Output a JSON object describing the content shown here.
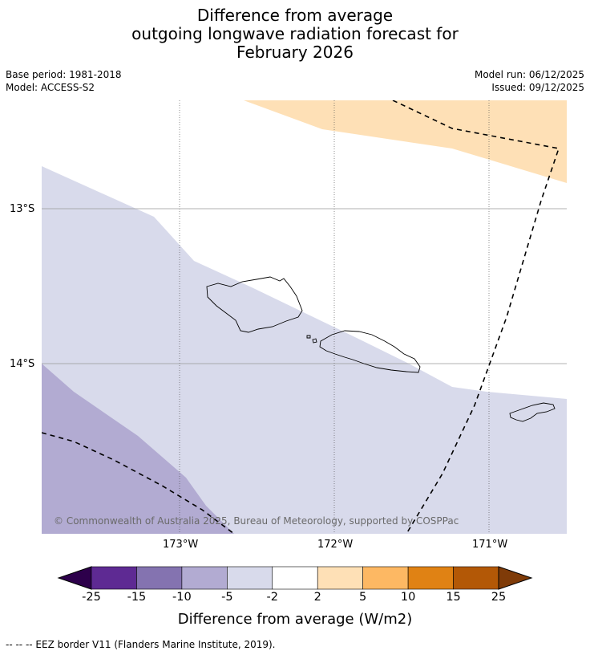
{
  "title": {
    "line1": "Difference from average",
    "line2": "outgoing longwave radiation forecast for",
    "line3": "February 2026"
  },
  "meta": {
    "base_period": "Base period: 1981-2018",
    "model": "Model: ACCESS-S2",
    "model_run": "Model run: 06/12/2025",
    "issued": "Issued: 09/12/2025"
  },
  "map": {
    "longitude_labels": [
      "173°W",
      "172°W",
      "171°W"
    ],
    "latitude_labels": [
      "13°S",
      "14°S"
    ],
    "copyright": "© Commonwealth of Australia 2025, Bureau of Meteorology, supported by COSPPac"
  },
  "colorbar": {
    "label": "Difference from average (W/m2)",
    "ticks": [
      "-25",
      "-15",
      "-10",
      "-5",
      "-2",
      "2",
      "5",
      "10",
      "15",
      "25"
    ],
    "colors": [
      "#2d004b",
      "#5e2a93",
      "#8473b0",
      "#b2abd2",
      "#d8daeb",
      "#ffffff",
      "#fee0b6",
      "#fdb863",
      "#e08214",
      "#b35806",
      "#7f3b08"
    ]
  },
  "footnote": "--  --  -- EEZ border V11 (Flanders Marine Institute, 2019)."
}
